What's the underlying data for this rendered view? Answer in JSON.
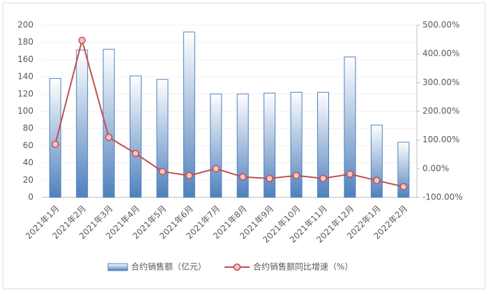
{
  "chart_data": {
    "type": "bar-line",
    "categories": [
      "2021年1月",
      "2021年2月",
      "2021年3月",
      "2021年4月",
      "2021年5月",
      "2021年6月",
      "2021年7月",
      "2021年8月",
      "2021年9月",
      "2021年10月",
      "2021年11月",
      "2021年12月",
      "2022年1月",
      "2022年2月"
    ],
    "series": [
      {
        "name": "合约销售额（亿元）",
        "type": "bar",
        "color": "#4f81bd",
        "values": [
          138,
          171,
          172,
          141,
          137,
          192,
          120,
          120,
          121,
          122,
          122,
          163,
          84,
          64
        ]
      },
      {
        "name": "合约销售额同比增速（%）",
        "type": "line",
        "axis": "y2",
        "color": "#c0504d",
        "values": [
          85,
          447,
          109,
          53,
          -10,
          -24,
          0,
          -29,
          -34,
          -24,
          -34,
          -19,
          -41,
          -63
        ]
      }
    ],
    "ylim": [
      0,
      200
    ],
    "yticks": [
      0,
      20,
      40,
      60,
      80,
      100,
      120,
      140,
      160,
      180,
      200
    ],
    "y2lim": [
      -100,
      500
    ],
    "y2ticks": [
      {
        "value": -100,
        "label": "-100.00%"
      },
      {
        "value": 0,
        "label": "0.00%"
      },
      {
        "value": 100,
        "label": "100.00%"
      },
      {
        "value": 200,
        "label": "200.00%"
      },
      {
        "value": 300,
        "label": "300.00%"
      },
      {
        "value": 400,
        "label": "400.00%"
      },
      {
        "value": 500,
        "label": "500.00%"
      }
    ],
    "grid": true,
    "legend": "bottom"
  }
}
